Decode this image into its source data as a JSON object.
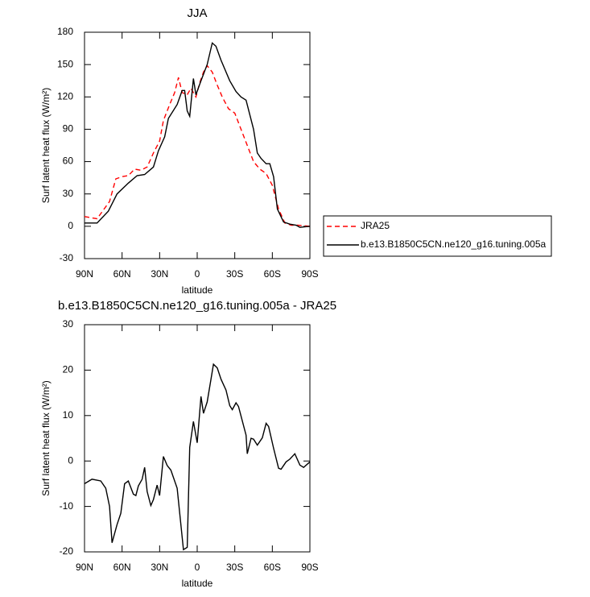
{
  "chart_data": [
    {
      "type": "line",
      "title": "JJA",
      "xlabel": "latitude",
      "ylabel": "Surf latent heat flux (W/m²)",
      "xlim": [
        90,
        -90
      ],
      "ylim": [
        -30,
        180
      ],
      "xticks": [
        {
          "value": 90,
          "label": "90N"
        },
        {
          "value": 60,
          "label": "60N"
        },
        {
          "value": 30,
          "label": "30N"
        },
        0,
        {
          "value": -30,
          "label": "30S"
        },
        {
          "value": -60,
          "label": "60S"
        },
        {
          "value": -90,
          "label": "90S"
        }
      ],
      "yticks": [
        -30,
        0,
        30,
        60,
        90,
        120,
        150,
        180
      ],
      "legend": "right",
      "series": [
        {
          "name": "JRA25",
          "color": "#ff0000",
          "dash": true,
          "x": [
            90,
            80,
            70,
            65,
            60,
            55,
            50,
            45,
            40,
            35,
            30,
            27,
            22,
            18,
            15,
            12,
            8,
            5,
            1,
            -2,
            -5,
            -8,
            -12,
            -16,
            -20,
            -25,
            -30,
            -35,
            -40,
            -45,
            -50,
            -55,
            -60,
            -65,
            -70,
            -75,
            -80,
            -90
          ],
          "values": [
            9,
            7,
            23,
            44,
            46,
            47,
            53,
            52,
            55,
            68,
            79,
            98,
            113,
            124,
            138,
            124,
            122,
            128,
            120,
            133,
            143,
            149,
            143,
            131,
            120,
            109,
            105,
            90,
            75,
            60,
            53,
            49,
            38,
            16,
            3,
            1,
            1,
            0
          ]
        },
        {
          "name": "b.e13.B1850C5CN.ne120_g16.tuning.005a",
          "color": "#000000",
          "dash": false,
          "x": [
            90,
            80,
            71,
            64,
            55,
            48,
            42,
            35,
            31,
            26,
            23,
            16,
            12,
            10,
            8,
            6,
            3,
            1,
            -3,
            -8,
            -12,
            -15,
            -19,
            -26,
            -31,
            -35,
            -39,
            -45,
            -48,
            -51,
            -55,
            -58,
            -61,
            -64,
            -69,
            -74,
            -79,
            -82,
            -90
          ],
          "values": [
            3,
            3,
            14,
            30,
            40,
            47,
            48,
            55,
            70,
            83,
            100,
            113,
            126,
            126,
            107,
            102,
            137,
            122,
            135,
            150,
            170,
            167,
            154,
            135,
            125,
            120,
            117,
            90,
            68,
            63,
            58,
            58,
            46,
            16,
            4,
            2,
            1,
            -1,
            0
          ]
        }
      ]
    },
    {
      "type": "line",
      "title": "b.e13.B1850C5CN.ne120_g16.tuning.005a - JRA25",
      "xlabel": "latitude",
      "ylabel": "Surf latent heat flux (W/m²)",
      "xlim": [
        90,
        -90
      ],
      "ylim": [
        -20,
        30
      ],
      "xticks": [
        {
          "value": 90,
          "label": "90N"
        },
        {
          "value": 60,
          "label": "60N"
        },
        {
          "value": 30,
          "label": "30N"
        },
        0,
        {
          "value": -30,
          "label": "30S"
        },
        {
          "value": -60,
          "label": "60S"
        },
        {
          "value": -90,
          "label": "90S"
        }
      ],
      "yticks": [
        -20,
        -10,
        0,
        10,
        20,
        30
      ],
      "series": [
        {
          "color": "#000000",
          "dash": false,
          "x": [
            90,
            84,
            77,
            73,
            70,
            68,
            64,
            61,
            58,
            55,
            51,
            49,
            47,
            44,
            42,
            40,
            37,
            35,
            32,
            30,
            27,
            24,
            21,
            16,
            11,
            8,
            6,
            3,
            0,
            -3,
            -5,
            -8,
            -11,
            -13,
            -16,
            -19,
            -23,
            -26,
            -28,
            -31,
            -33,
            -39,
            -40,
            -43,
            -45,
            -48,
            -52,
            -55,
            -57,
            -61,
            -65,
            -67,
            -71,
            -74,
            -78,
            -82,
            -85,
            -90
          ],
          "values": [
            -5,
            -4,
            -4.4,
            -6,
            -10,
            -18,
            -14,
            -11.5,
            -5,
            -4.4,
            -7.3,
            -7.6,
            -5.5,
            -4,
            -1.4,
            -6.7,
            -9.8,
            -8.5,
            -5.3,
            -7.6,
            1,
            -1,
            -2,
            -6,
            -19.5,
            -19,
            3,
            8.7,
            4,
            14.2,
            10.5,
            13,
            18,
            21.3,
            20.5,
            18,
            15.6,
            12.2,
            11.3,
            12.8,
            12,
            5.7,
            1.6,
            5,
            4.8,
            3.5,
            5.1,
            8.3,
            7.6,
            2.8,
            -1.6,
            -1.8,
            -0.2,
            0.4,
            1.6,
            -0.9,
            -1.4,
            -0.2
          ]
        }
      ]
    }
  ]
}
